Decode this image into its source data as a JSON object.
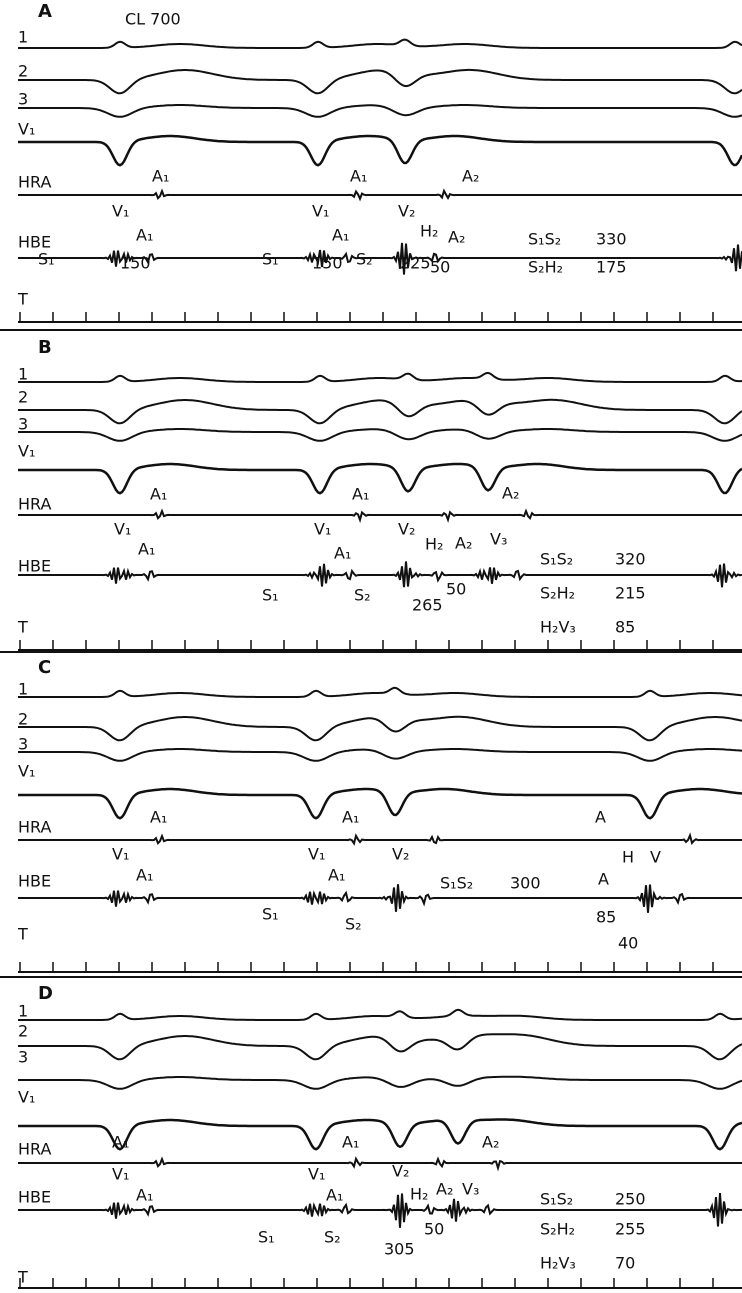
{
  "panels": [
    {
      "label": "A",
      "leads": [
        "1",
        "2",
        "3",
        "V₁",
        "HRA",
        "HBE",
        "T"
      ],
      "annotations": [
        "CL 700",
        "A₁",
        "A₁",
        "A₂",
        "V₁",
        "A₁",
        "V₁",
        "A₁",
        "V₂",
        "H₂",
        "A₂",
        "50",
        "S₁",
        "150",
        "S₁",
        "150",
        "S₂",
        "225",
        "S₁S₂",
        "330",
        "S₂H₂",
        "175"
      ]
    },
    {
      "label": "B",
      "leads": [
        "1",
        "2",
        "3",
        "V₁",
        "HRA",
        "HBE",
        "T"
      ],
      "annotations": [
        "A₁",
        "A₁",
        "A₂",
        "V₁",
        "A₁",
        "V₁",
        "A₁",
        "V₂",
        "H₂",
        "A₂",
        "V₃",
        "50",
        "S₁",
        "S₂",
        "265",
        "S₁S₂",
        "320",
        "S₂H₂",
        "215",
        "H₂V₃",
        "85"
      ]
    },
    {
      "label": "C",
      "leads": [
        "1",
        "2",
        "3",
        "V₁",
        "HRA",
        "HBE",
        "T"
      ],
      "annotations": [
        "A₁",
        "A₁",
        "A",
        "V₁",
        "A₁",
        "V₁",
        "A₁",
        "V₂",
        "S₁S₂",
        "300",
        "H",
        "V",
        "A",
        "85",
        "40",
        "S₁",
        "S₂"
      ]
    },
    {
      "label": "D",
      "leads": [
        "1",
        "2",
        "3",
        "V₁",
        "HRA",
        "HBE",
        "T"
      ],
      "annotations": [
        "A₁",
        "A₁",
        "A₂",
        "V₁",
        "A₁",
        "V₁",
        "A₁",
        "V₂",
        "H₂",
        "A₂",
        "V₃",
        "50",
        "S₁",
        "S₂",
        "305",
        "S₁S₂",
        "250",
        "S₂H₂",
        "255",
        "H₂V₃",
        "70"
      ]
    }
  ]
}
